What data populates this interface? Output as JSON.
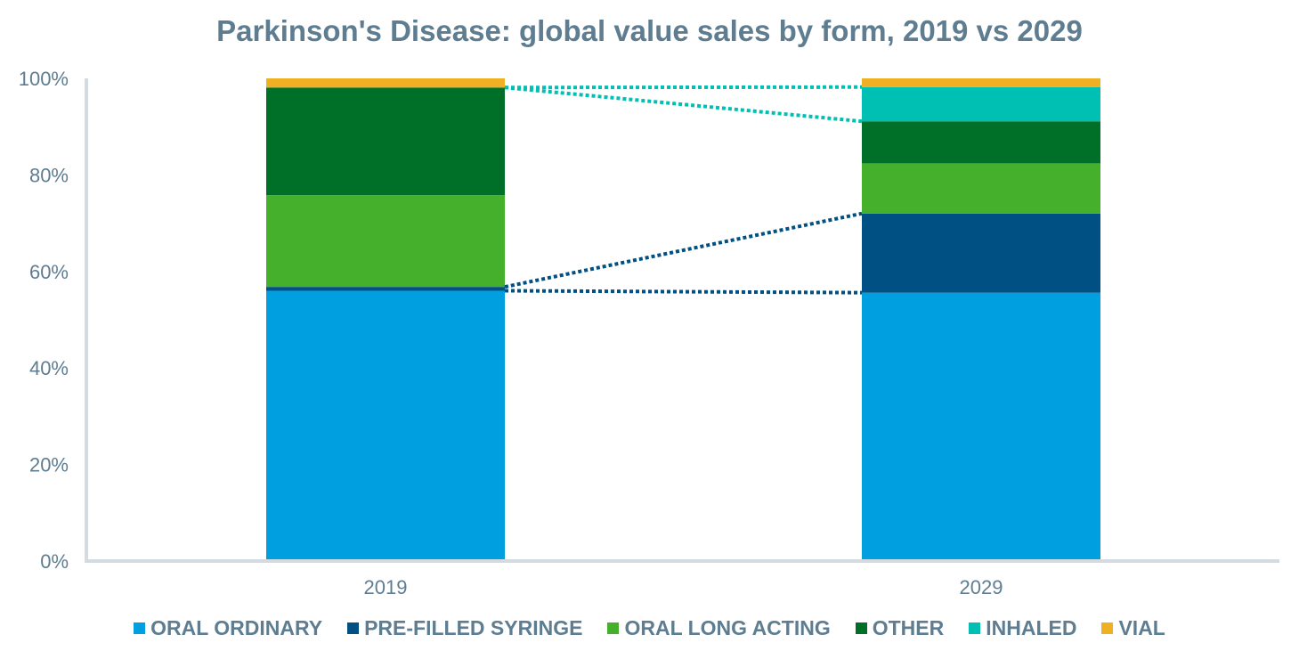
{
  "chart_data": {
    "type": "bar",
    "stacked": true,
    "title": "Parkinson's Disease: global value sales by form, 2019 vs 2029",
    "categories": [
      "2019",
      "2029"
    ],
    "series": [
      {
        "name": "ORAL ORDINARY",
        "color": "#00a0e0",
        "values": [
          56.0,
          55.6
        ]
      },
      {
        "name": "PRE-FILLED SYRINGE",
        "color": "#005083",
        "values": [
          0.8,
          16.4
        ]
      },
      {
        "name": "ORAL LONG ACTING",
        "color": "#45b02c",
        "values": [
          19.0,
          10.4
        ]
      },
      {
        "name": "OTHER",
        "color": "#007028",
        "values": [
          22.3,
          8.7
        ]
      },
      {
        "name": "INHALED",
        "color": "#00bfb3",
        "values": [
          0.0,
          7.1
        ]
      },
      {
        "name": "VIAL",
        "color": "#f0b023",
        "values": [
          1.9,
          1.8
        ]
      }
    ],
    "y_ticks": [
      "0%",
      "20%",
      "40%",
      "60%",
      "80%",
      "100%"
    ],
    "ylim": [
      0,
      100
    ],
    "xlabel": "",
    "ylabel": "",
    "legend_position": "bottom",
    "grid": false,
    "connector_lines": [
      {
        "series": "PRE-FILLED SYRINGE",
        "color": "#005083"
      },
      {
        "series": "INHALED",
        "color": "#00bfb3"
      }
    ],
    "axis_color": "#d3dbe1",
    "text_color": "#5e7d91"
  }
}
